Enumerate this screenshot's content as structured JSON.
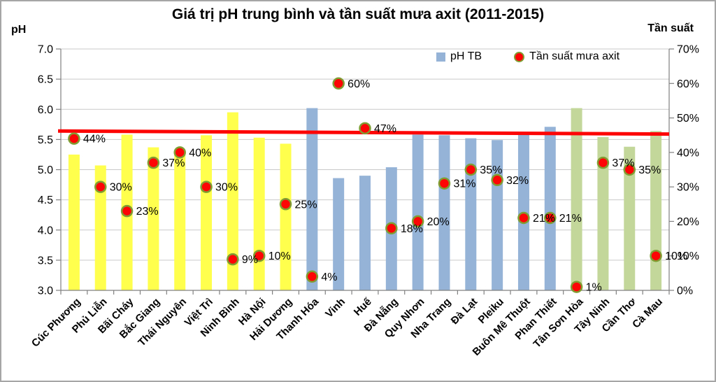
{
  "chart_data": {
    "type": "combo",
    "title": "Giá trị pH trung bình và tần suất mưa axit (2011-2015)",
    "categories": [
      "Cúc Phương",
      "Phủ Liễn",
      "Bãi Cháy",
      "Bắc Giang",
      "Thái Nguyên",
      "Việt Trì",
      "Ninh Bình",
      "Hà Nội",
      "Hải Dương",
      "Thanh Hóa",
      "Vinh",
      "Huế",
      "Đà Nẵng",
      "Quy Nhơn",
      "Nha Trang",
      "Đà Lạt",
      "Pleiku",
      "Buôn Mê Thuột",
      "Phan Thiết",
      "Tân Sơn Hòa",
      "Tây Ninh",
      "Cần Thơ",
      "Cà Mau"
    ],
    "series": [
      {
        "name": "pH TB",
        "type": "bar",
        "axis": "left",
        "values": [
          5.25,
          5.07,
          5.58,
          5.37,
          5.3,
          5.57,
          5.95,
          5.53,
          5.43,
          6.02,
          4.86,
          4.9,
          5.04,
          5.58,
          5.57,
          5.52,
          5.49,
          5.58,
          5.71,
          6.02,
          5.54,
          5.38,
          5.64
        ]
      },
      {
        "name": "Tần suất mưa axit",
        "type": "scatter",
        "axis": "right",
        "unit": "%",
        "values": [
          44,
          30,
          23,
          37,
          40,
          30,
          9,
          10,
          25,
          4,
          60,
          47,
          18,
          20,
          31,
          35,
          32,
          21,
          21,
          1,
          37,
          35,
          10
        ],
        "labels": [
          "44%",
          "30%",
          "23%",
          "37%",
          "40%",
          "30%",
          "9%",
          "10%",
          "25%",
          "4%",
          "60%",
          "47%",
          "18%",
          "20%",
          "31%",
          "35%",
          "32%",
          "21%",
          "21%",
          "1%",
          "37%",
          "35%",
          "10%"
        ]
      }
    ],
    "bar_groups": [
      0,
      0,
      0,
      0,
      0,
      0,
      0,
      0,
      0,
      1,
      1,
      1,
      1,
      1,
      1,
      1,
      1,
      1,
      1,
      2,
      2,
      2,
      2
    ],
    "group_colors": [
      "#FFFF4D",
      "#95B3D7",
      "#C4D79B"
    ],
    "left_axis": {
      "title": "pH",
      "min": 3.0,
      "max": 7.0,
      "step": 0.5,
      "tick_labels": [
        "7.0",
        "6.5",
        "6.0",
        "5.5",
        "5.0",
        "4.5",
        "4.0",
        "3.5",
        "3.0"
      ]
    },
    "right_axis": {
      "title": "Tần suất",
      "min": 0,
      "max": 70,
      "step": 10,
      "tick_labels": [
        "70%",
        "60%",
        "50%",
        "40%",
        "30%",
        "20%",
        "10%",
        "0%"
      ]
    },
    "legend": {
      "position": "top-right-inside",
      "items": [
        {
          "label": "pH TB",
          "marker": "square",
          "color": "#95B3D7"
        },
        {
          "label": "Tần suất mưa axit",
          "marker": "circle",
          "color": "#FE0505"
        }
      ]
    },
    "reference_line": {
      "color": "#FE0505",
      "start_ph": 5.64,
      "end_ph": 5.59,
      "width": 5
    },
    "grid": true,
    "colors": {
      "dot_fill": "#FE0505",
      "dot_stroke": "#7F9D32",
      "gridline": "#C9C9C9",
      "axis": "#808080",
      "text": "#000000"
    }
  }
}
